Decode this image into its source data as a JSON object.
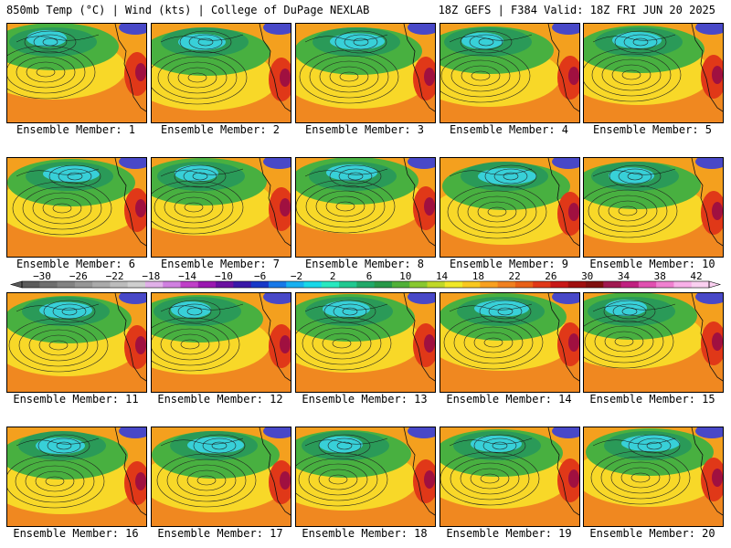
{
  "header": {
    "left": "850mb Temp (°C) | Wind (kts) | College of DuPage NEXLAB",
    "right": "18Z GEFS | F384 Valid: 18Z FRI JUN 20 2025"
  },
  "panels": [
    {
      "label": "Ensemble Member: 1"
    },
    {
      "label": "Ensemble Member: 2"
    },
    {
      "label": "Ensemble Member: 3"
    },
    {
      "label": "Ensemble Member: 4"
    },
    {
      "label": "Ensemble Member: 5"
    },
    {
      "label": "Ensemble Member: 6"
    },
    {
      "label": "Ensemble Member: 7"
    },
    {
      "label": "Ensemble Member: 8"
    },
    {
      "label": "Ensemble Member: 9"
    },
    {
      "label": "Ensemble Member: 10"
    },
    {
      "label": "Ensemble Member: 11"
    },
    {
      "label": "Ensemble Member: 12"
    },
    {
      "label": "Ensemble Member: 13"
    },
    {
      "label": "Ensemble Member: 14"
    },
    {
      "label": "Ensemble Member: 15"
    },
    {
      "label": "Ensemble Member: 16"
    },
    {
      "label": "Ensemble Member: 17"
    },
    {
      "label": "Ensemble Member: 18"
    },
    {
      "label": "Ensemble Member: 19"
    },
    {
      "label": "Ensemble Member: 20"
    }
  ],
  "colorbar": {
    "labels": [
      "−30",
      "−26",
      "−22",
      "−18",
      "−14",
      "−10",
      "−6",
      "−2",
      "2",
      "6",
      "10",
      "14",
      "18",
      "22",
      "26",
      "30",
      "34",
      "38",
      "42"
    ],
    "colors": [
      "#5a5a5a",
      "#6e6e6e",
      "#828282",
      "#969696",
      "#aaaaaa",
      "#bcbcbc",
      "#cfcfcf",
      "#e0b0e8",
      "#d080e0",
      "#c040c8",
      "#9a18b0",
      "#6a10a0",
      "#3a18a8",
      "#1838c8",
      "#1878e8",
      "#18b0f0",
      "#18d8e8",
      "#28e8c0",
      "#20c890",
      "#20a868",
      "#289848",
      "#50b038",
      "#88c830",
      "#c0d828",
      "#f0e828",
      "#f8c820",
      "#f8a020",
      "#f08020",
      "#e86018",
      "#e03818",
      "#c81818",
      "#a01010",
      "#801010",
      "#a01850",
      "#c02080",
      "#e050b0",
      "#f080d0",
      "#f8b0e8",
      "#fad0f0"
    ]
  }
}
